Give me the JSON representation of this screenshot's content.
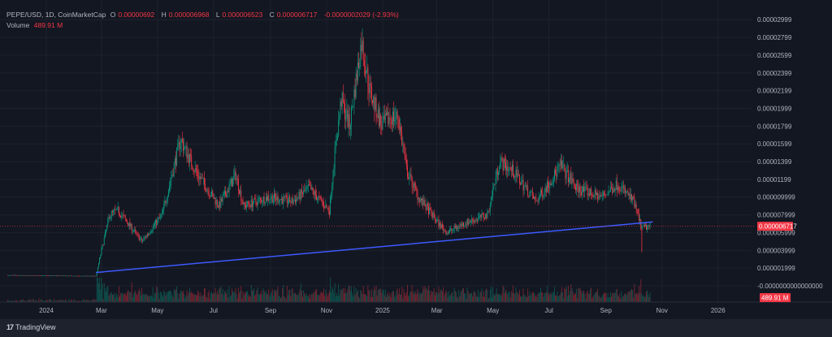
{
  "header": {
    "symbol": "PEPE/USD, 1D, CoinMarketCap",
    "o_label": "O",
    "open": "0.00000692",
    "h_label": "H",
    "high": "0.000006968",
    "l_label": "L",
    "low": "0.000006523",
    "c_label": "C",
    "close": "0.000006717",
    "change": "-0.0000002029 (-2.93%)",
    "volume_label": "Volume",
    "volume": "489.91 M"
  },
  "footer": {
    "brand": "TradingView"
  },
  "colors": {
    "up": "#089981",
    "down": "#f23645",
    "trend": "#3d5afe",
    "bg": "#131722"
  },
  "chart_data": {
    "type": "candlestick",
    "title": "PEPE/USD, 1D, CoinMarketCap",
    "x_unit": "days since 2024-01-01",
    "x_ticks": [
      {
        "label": "2024",
        "day": 0
      },
      {
        "label": "Mar",
        "day": 60
      },
      {
        "label": "May",
        "day": 121
      },
      {
        "label": "Jul",
        "day": 182
      },
      {
        "label": "Sep",
        "day": 244
      },
      {
        "label": "Nov",
        "day": 305
      },
      {
        "label": "2025",
        "day": 366
      },
      {
        "label": "Mar",
        "day": 425
      },
      {
        "label": "May",
        "day": 486
      },
      {
        "label": "Jul",
        "day": 547
      },
      {
        "label": "Sep",
        "day": 609
      },
      {
        "label": "Nov",
        "day": 670
      },
      {
        "label": "2026",
        "day": 731
      }
    ],
    "y_ticks": [
      "0.00002999",
      "0.00002799",
      "0.00002599",
      "0.00002399",
      "0.00002199",
      "0.00001999",
      "0.00001799",
      "0.00001599",
      "0.00001399",
      "0.00001199",
      "0.000009999",
      "0.000007999",
      "0.000005999",
      "0.000003999",
      "0.000001999",
      "-0.0000000000000000"
    ],
    "y_tick_values": [
      29.99,
      27.99,
      25.99,
      23.99,
      21.99,
      19.99,
      17.99,
      15.99,
      13.99,
      11.99,
      9.999,
      7.999,
      5.999,
      3.999,
      1.999,
      0
    ],
    "y_unit": "1e-6 USD",
    "ylim": [
      -2,
      33
    ],
    "price_path": [
      [
        -42,
        1.2
      ],
      [
        54,
        1.1
      ],
      [
        60,
        4
      ],
      [
        69,
        8
      ],
      [
        78,
        8.5
      ],
      [
        104,
        5
      ],
      [
        126,
        8
      ],
      [
        146,
        16.5
      ],
      [
        162,
        13
      ],
      [
        188,
        9
      ],
      [
        206,
        12.5
      ],
      [
        215,
        9
      ],
      [
        242,
        10
      ],
      [
        268,
        9.5
      ],
      [
        286,
        11
      ],
      [
        308,
        8.5
      ],
      [
        314,
        15
      ],
      [
        321,
        21
      ],
      [
        330,
        18
      ],
      [
        343,
        27.5
      ],
      [
        352,
        22
      ],
      [
        365,
        18
      ],
      [
        374,
        19
      ],
      [
        383,
        19
      ],
      [
        392,
        13
      ],
      [
        405,
        10
      ],
      [
        427,
        7
      ],
      [
        436,
        6
      ],
      [
        454,
        7
      ],
      [
        480,
        8
      ],
      [
        493,
        14
      ],
      [
        507,
        13
      ],
      [
        533,
        9.5
      ],
      [
        560,
        13.5
      ],
      [
        577,
        11
      ],
      [
        604,
        10
      ],
      [
        622,
        11.5
      ],
      [
        639,
        9.5
      ],
      [
        648,
        6.5
      ],
      [
        657,
        6.717
      ]
    ],
    "trendline": [
      [
        54,
        1.5
      ],
      [
        660,
        7.2
      ]
    ],
    "last_price": "0.000006717",
    "last_price_value": 6.717,
    "last_volume": "489.91 M"
  }
}
